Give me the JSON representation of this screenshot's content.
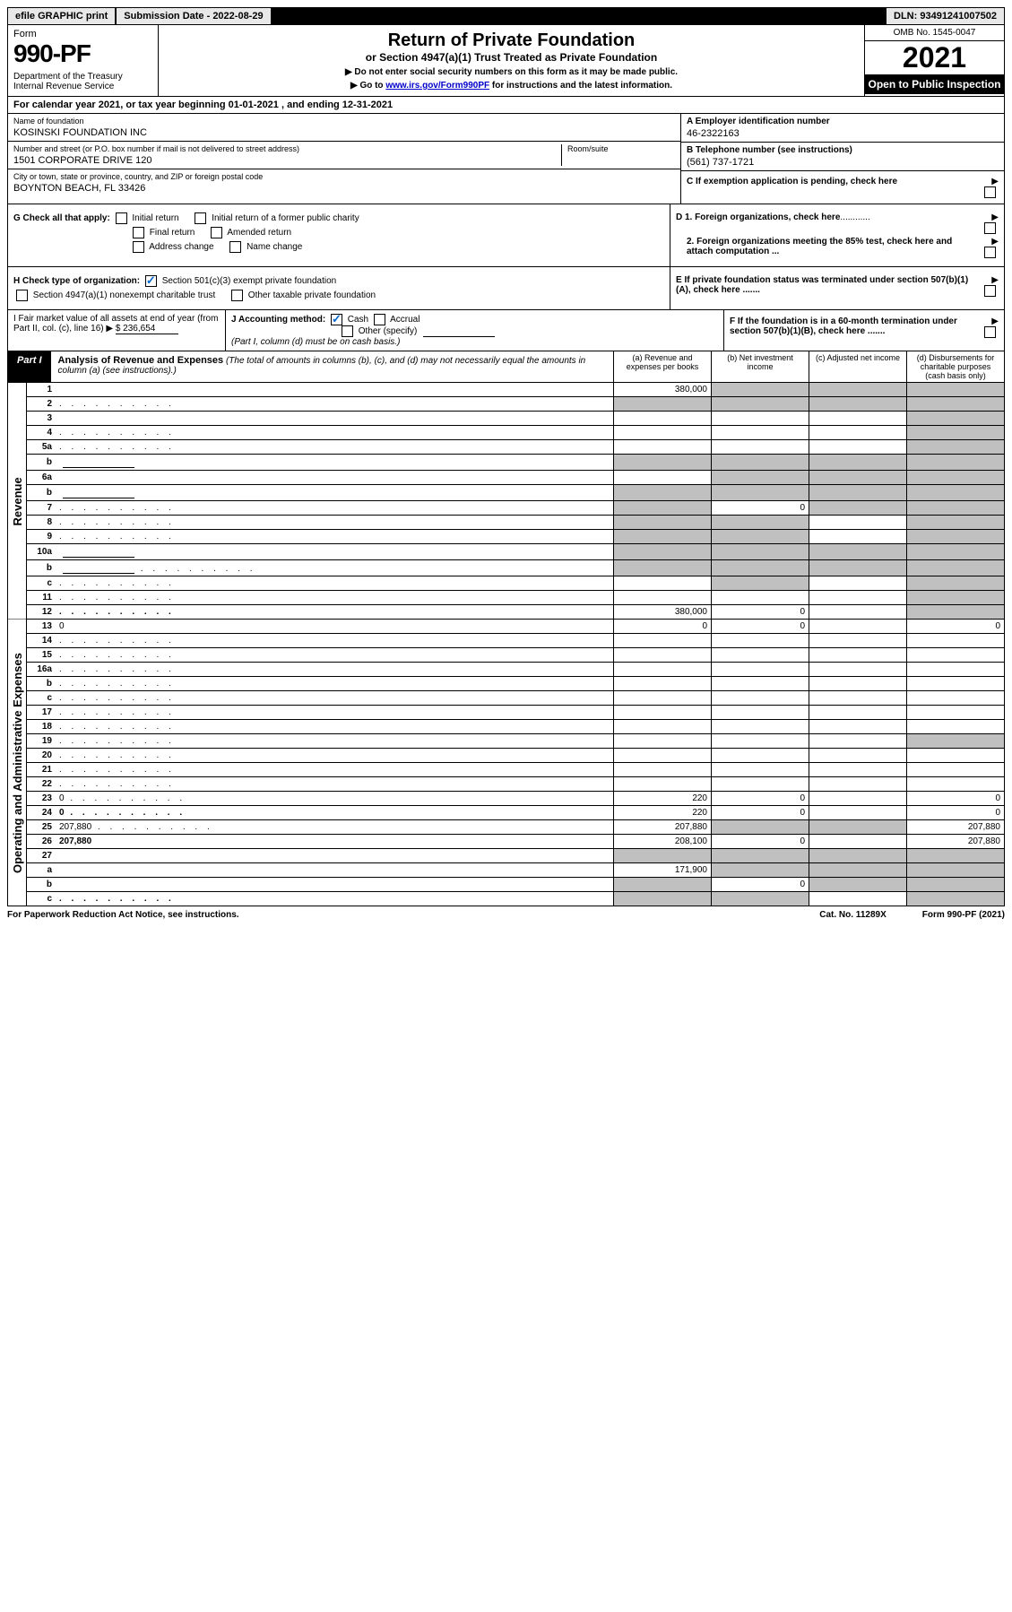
{
  "topbar": {
    "efile": "efile GRAPHIC print",
    "submission": "Submission Date - 2022-08-29",
    "dln": "DLN: 93491241007502"
  },
  "header": {
    "form_label": "Form",
    "form_no": "990-PF",
    "dept": "Department of the Treasury\nInternal Revenue Service",
    "title": "Return of Private Foundation",
    "subtitle": "or Section 4947(a)(1) Trust Treated as Private Foundation",
    "instr1": "▶ Do not enter social security numbers on this form as it may be made public.",
    "instr2_prefix": "▶ Go to ",
    "instr2_link": "www.irs.gov/Form990PF",
    "instr2_suffix": " for instructions and the latest information.",
    "omb": "OMB No. 1545-0047",
    "year": "2021",
    "inspection": "Open to Public Inspection"
  },
  "calyear": "For calendar year 2021, or tax year beginning 01-01-2021             , and ending 12-31-2021",
  "info": {
    "name_label": "Name of foundation",
    "name": "KOSINSKI FOUNDATION INC",
    "addr_label": "Number and street (or P.O. box number if mail is not delivered to street address)",
    "addr": "1501 CORPORATE DRIVE 120",
    "room_label": "Room/suite",
    "city_label": "City or town, state or province, country, and ZIP or foreign postal code",
    "city": "BOYNTON BEACH, FL  33426",
    "a_label": "A Employer identification number",
    "a_val": "46-2322163",
    "b_label": "B Telephone number (see instructions)",
    "b_val": "(561) 737-1721",
    "c_label": "C If exemption application is pending, check here"
  },
  "g": {
    "label": "G Check all that apply:",
    "initial": "Initial return",
    "initial_former": "Initial return of a former public charity",
    "final": "Final return",
    "amended": "Amended return",
    "address": "Address change",
    "name": "Name change"
  },
  "d": {
    "d1": "D 1. Foreign organizations, check here",
    "d2": "2. Foreign organizations meeting the 85% test, check here and attach computation ..."
  },
  "h": {
    "label": "H Check type of organization:",
    "opt1": "Section 501(c)(3) exempt private foundation",
    "opt2": "Section 4947(a)(1) nonexempt charitable trust",
    "opt3": "Other taxable private foundation"
  },
  "e": "E  If private foundation status was terminated under section 507(b)(1)(A), check here .......",
  "i": {
    "label": "I Fair market value of all assets at end of year (from Part II, col. (c), line 16) ▶",
    "value": "$  236,654"
  },
  "j": {
    "label": "J Accounting method:",
    "cash": "Cash",
    "accrual": "Accrual",
    "other": "Other (specify)",
    "note": "(Part I, column (d) must be on cash basis.)"
  },
  "f": "F  If the foundation is in a 60-month termination under section 507(b)(1)(B), check here .......",
  "part1": {
    "label": "Part I",
    "title": "Analysis of Revenue and Expenses",
    "note": "(The total of amounts in columns (b), (c), and (d) may not necessarily equal the amounts in column (a) (see instructions).)",
    "col_a": "(a)   Revenue and expenses per books",
    "col_b": "(b)   Net investment income",
    "col_c": "(c)   Adjusted net income",
    "col_d": "(d)   Disbursements for charitable purposes (cash basis only)"
  },
  "side": {
    "revenue": "Revenue",
    "expenses": "Operating and Administrative Expenses"
  },
  "rows": [
    {
      "n": "1",
      "d": "",
      "a": "380,000",
      "b": "",
      "c": "",
      "sb": true,
      "sc": true,
      "sd": true
    },
    {
      "n": "2",
      "d": "",
      "dots": true,
      "a": "",
      "b": "",
      "c": "",
      "sa": true,
      "sb": true,
      "sc": true,
      "sd": true
    },
    {
      "n": "3",
      "d": "",
      "a": "",
      "b": "",
      "c": "",
      "sd": true
    },
    {
      "n": "4",
      "d": "",
      "dots": true,
      "a": "",
      "b": "",
      "c": "",
      "sd": true
    },
    {
      "n": "5a",
      "d": "",
      "dots": true,
      "a": "",
      "b": "",
      "c": "",
      "sd": true
    },
    {
      "n": "b",
      "d": "",
      "sub": true,
      "a": "",
      "b": "",
      "c": "",
      "sa": true,
      "sb": true,
      "sc": true,
      "sd": true
    },
    {
      "n": "6a",
      "d": "",
      "a": "",
      "b": "",
      "c": "",
      "sb": true,
      "sc": true,
      "sd": true
    },
    {
      "n": "b",
      "d": "",
      "sub": true,
      "a": "",
      "b": "",
      "c": "",
      "sa": true,
      "sb": true,
      "sc": true,
      "sd": true
    },
    {
      "n": "7",
      "d": "",
      "dots": true,
      "a": "",
      "b": "0",
      "c": "",
      "sa": true,
      "sc": true,
      "sd": true
    },
    {
      "n": "8",
      "d": "",
      "dots": true,
      "a": "",
      "b": "",
      "c": "",
      "sa": true,
      "sb": true,
      "sd": true
    },
    {
      "n": "9",
      "d": "",
      "dots": true,
      "a": "",
      "b": "",
      "c": "",
      "sa": true,
      "sb": true,
      "sd": true
    },
    {
      "n": "10a",
      "d": "",
      "sub": true,
      "a": "",
      "b": "",
      "c": "",
      "sa": true,
      "sb": true,
      "sc": true,
      "sd": true
    },
    {
      "n": "b",
      "d": "",
      "dots": true,
      "sub": true,
      "a": "",
      "b": "",
      "c": "",
      "sa": true,
      "sb": true,
      "sc": true,
      "sd": true
    },
    {
      "n": "c",
      "d": "",
      "dots": true,
      "a": "",
      "b": "",
      "c": "",
      "sb": true,
      "sd": true
    },
    {
      "n": "11",
      "d": "",
      "dots": true,
      "a": "",
      "b": "",
      "c": "",
      "sd": true
    },
    {
      "n": "12",
      "d": "",
      "dots": true,
      "bold": true,
      "a": "380,000",
      "b": "0",
      "c": "",
      "sd": true
    }
  ],
  "exprows": [
    {
      "n": "13",
      "d": "0",
      "a": "0",
      "b": "0",
      "c": ""
    },
    {
      "n": "14",
      "d": "",
      "dots": true,
      "a": "",
      "b": "",
      "c": ""
    },
    {
      "n": "15",
      "d": "",
      "dots": true,
      "a": "",
      "b": "",
      "c": ""
    },
    {
      "n": "16a",
      "d": "",
      "dots": true,
      "a": "",
      "b": "",
      "c": ""
    },
    {
      "n": "b",
      "d": "",
      "dots": true,
      "a": "",
      "b": "",
      "c": ""
    },
    {
      "n": "c",
      "d": "",
      "dots": true,
      "a": "",
      "b": "",
      "c": ""
    },
    {
      "n": "17",
      "d": "",
      "dots": true,
      "a": "",
      "b": "",
      "c": ""
    },
    {
      "n": "18",
      "d": "",
      "dots": true,
      "a": "",
      "b": "",
      "c": ""
    },
    {
      "n": "19",
      "d": "",
      "dots": true,
      "a": "",
      "b": "",
      "c": "",
      "sd": true
    },
    {
      "n": "20",
      "d": "",
      "dots": true,
      "a": "",
      "b": "",
      "c": ""
    },
    {
      "n": "21",
      "d": "",
      "dots": true,
      "a": "",
      "b": "",
      "c": ""
    },
    {
      "n": "22",
      "d": "",
      "dots": true,
      "a": "",
      "b": "",
      "c": ""
    },
    {
      "n": "23",
      "d": "0",
      "dots": true,
      "a": "220",
      "b": "0",
      "c": ""
    },
    {
      "n": "24",
      "d": "0",
      "dots": true,
      "bold": true,
      "a": "220",
      "b": "0",
      "c": ""
    },
    {
      "n": "25",
      "d": "207,880",
      "dots": true,
      "a": "207,880",
      "b": "",
      "c": "",
      "sb": true,
      "sc": true
    },
    {
      "n": "26",
      "d": "207,880",
      "bold": true,
      "a": "208,100",
      "b": "0",
      "c": ""
    }
  ],
  "netrows": [
    {
      "n": "27",
      "d": "",
      "a": "",
      "b": "",
      "c": "",
      "sa": true,
      "sb": true,
      "sc": true,
      "sd": true
    },
    {
      "n": "a",
      "d": "",
      "bold": true,
      "a": "171,900",
      "b": "",
      "c": "",
      "sb": true,
      "sc": true,
      "sd": true
    },
    {
      "n": "b",
      "d": "",
      "bold": true,
      "a": "",
      "b": "0",
      "c": "",
      "sa": true,
      "sc": true,
      "sd": true
    },
    {
      "n": "c",
      "d": "",
      "dots": true,
      "bold": true,
      "a": "",
      "b": "",
      "c": "",
      "sa": true,
      "sb": true,
      "sd": true
    }
  ],
  "footer": {
    "left": "For Paperwork Reduction Act Notice, see instructions.",
    "cat": "Cat. No. 11289X",
    "right": "Form 990-PF (2021)"
  }
}
